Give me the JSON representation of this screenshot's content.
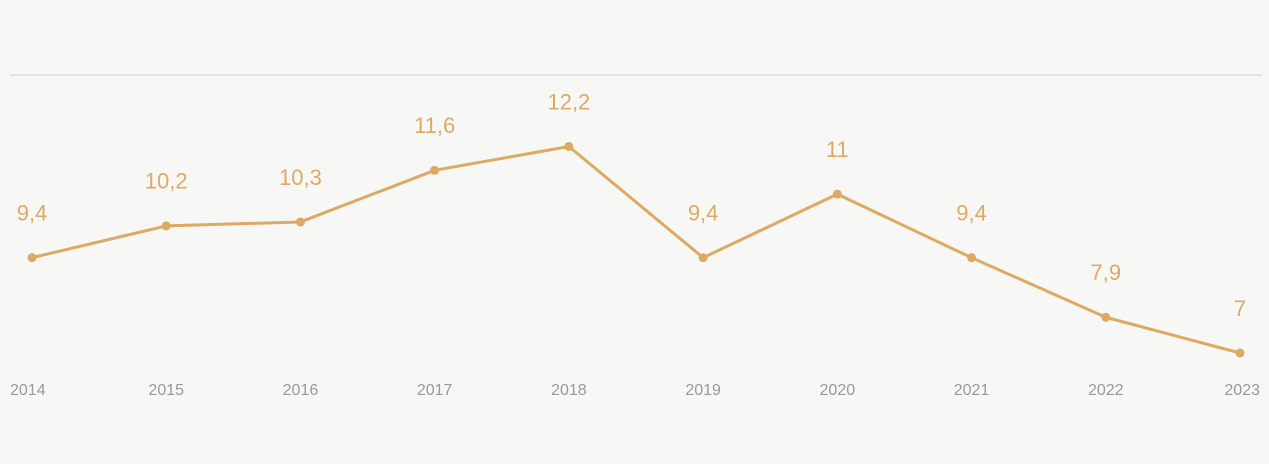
{
  "chart_data": {
    "type": "line",
    "categories": [
      "2014",
      "2015",
      "2016",
      "2017",
      "2018",
      "2019",
      "2020",
      "2021",
      "2022",
      "2023"
    ],
    "values": [
      9.4,
      10.2,
      10.3,
      11.6,
      12.2,
      9.4,
      11,
      9.4,
      7.9,
      7
    ],
    "value_labels": [
      "9,4",
      "10,2",
      "10,3",
      "11,6",
      "12,2",
      "9,4",
      "11",
      "9,4",
      "7,9",
      "7"
    ],
    "color": "#dcaa63",
    "ylim": [
      7,
      14
    ]
  }
}
